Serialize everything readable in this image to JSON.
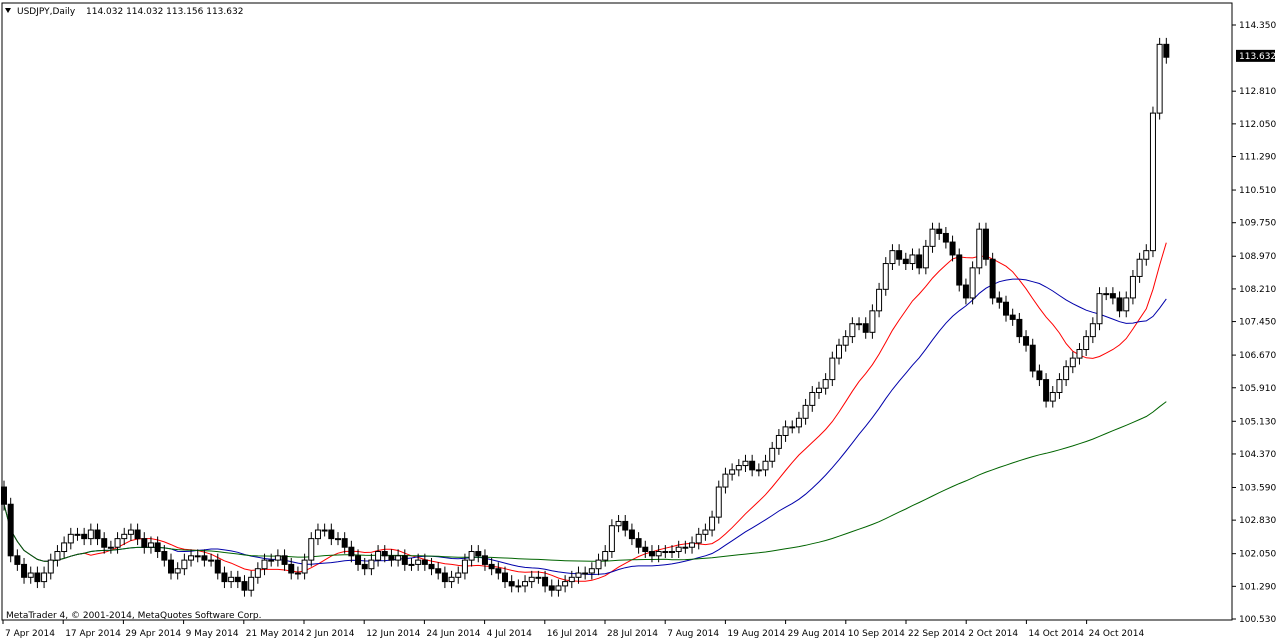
{
  "header": {
    "symbol": "USDJPY,Daily",
    "ohlc": "114.032 114.032 113.156 113.632",
    "triangle_icon": "dropdown-triangle-icon"
  },
  "footer": {
    "copyright": "MetaTrader 4, © 2001-2014, MetaQuotes Software Corp."
  },
  "colors": {
    "background": "#ffffff",
    "ma_fast": "#ff0000",
    "ma_mid": "#0000aa",
    "ma_slow": "#006400",
    "candle": "#000000"
  },
  "chart_data": {
    "type": "candlestick",
    "ylim": [
      100.53,
      114.35
    ],
    "y_ticks": [
      "114.350",
      "113.632",
      "112.810",
      "112.050",
      "111.290",
      "110.510",
      "109.750",
      "108.970",
      "108.210",
      "107.450",
      "106.670",
      "105.910",
      "105.130",
      "104.370",
      "103.590",
      "102.830",
      "102.050",
      "101.290",
      "100.530"
    ],
    "current_price": "113.632",
    "x_labels": [
      "7 Apr 2014",
      "17 Apr 2014",
      "29 Apr 2014",
      "9 May 2014",
      "21 May 2014",
      "2 Jun 2014",
      "12 Jun 2014",
      "24 Jun 2014",
      "4 Jul 2014",
      "16 Jul 2014",
      "28 Jul 2014",
      "7 Aug 2014",
      "19 Aug 2014",
      "29 Aug 2014",
      "10 Sep 2014",
      "22 Sep 2014",
      "2 Oct 2014",
      "14 Oct 2014",
      "24 Oct 2014"
    ],
    "closes": [
      103.2,
      102.0,
      101.8,
      101.5,
      101.6,
      101.4,
      101.6,
      101.9,
      102.1,
      102.3,
      102.5,
      102.5,
      102.4,
      102.6,
      102.4,
      102.2,
      102.2,
      102.4,
      102.5,
      102.6,
      102.4,
      102.2,
      102.3,
      102.1,
      101.9,
      101.6,
      101.7,
      101.9,
      102.0,
      102.0,
      101.9,
      101.9,
      101.6,
      101.4,
      101.5,
      101.4,
      101.2,
      101.5,
      101.7,
      101.9,
      101.9,
      102.0,
      101.8,
      101.6,
      101.6,
      101.9,
      102.4,
      102.6,
      102.6,
      102.4,
      102.4,
      102.2,
      102.0,
      101.8,
      101.7,
      101.9,
      102.1,
      102.0,
      101.9,
      102.0,
      101.8,
      101.8,
      101.9,
      101.8,
      101.7,
      101.6,
      101.4,
      101.5,
      101.6,
      101.9,
      102.1,
      102.0,
      101.8,
      101.7,
      101.6,
      101.4,
      101.3,
      101.3,
      101.4,
      101.5,
      101.5,
      101.3,
      101.2,
      101.3,
      101.4,
      101.5,
      101.6,
      101.6,
      101.7,
      101.9,
      102.1,
      102.7,
      102.8,
      102.6,
      102.4,
      102.2,
      102.1,
      102.0,
      102.1,
      102.1,
      102.1,
      102.2,
      102.2,
      102.3,
      102.5,
      102.6,
      102.9,
      103.6,
      103.9,
      104.0,
      104.1,
      104.2,
      104.0,
      104.0,
      104.2,
      104.5,
      104.8,
      105.0,
      105.0,
      105.2,
      105.5,
      105.8,
      105.9,
      106.1,
      106.6,
      106.9,
      107.1,
      107.4,
      107.4,
      107.2,
      107.7,
      108.2,
      108.8,
      109.1,
      108.9,
      108.8,
      109.0,
      108.7,
      109.2,
      109.6,
      109.5,
      109.3,
      109.0,
      108.3,
      108.0,
      108.7,
      109.6,
      108.9,
      108.0,
      107.9,
      107.6,
      107.5,
      107.1,
      106.9,
      106.3,
      106.1,
      105.6,
      105.8,
      106.1,
      106.4,
      106.6,
      106.8,
      107.1,
      107.4,
      108.1,
      108.1,
      108.0,
      107.7,
      108.0,
      108.5,
      108.9,
      109.1,
      112.3,
      113.9,
      113.6
    ],
    "series": [
      {
        "name": "",
        "color": "#ff0000",
        "period": 13
      },
      {
        "name": "",
        "color": "#0000aa",
        "period": 26
      },
      {
        "name": "",
        "color": "#006400",
        "period": 100
      }
    ]
  }
}
